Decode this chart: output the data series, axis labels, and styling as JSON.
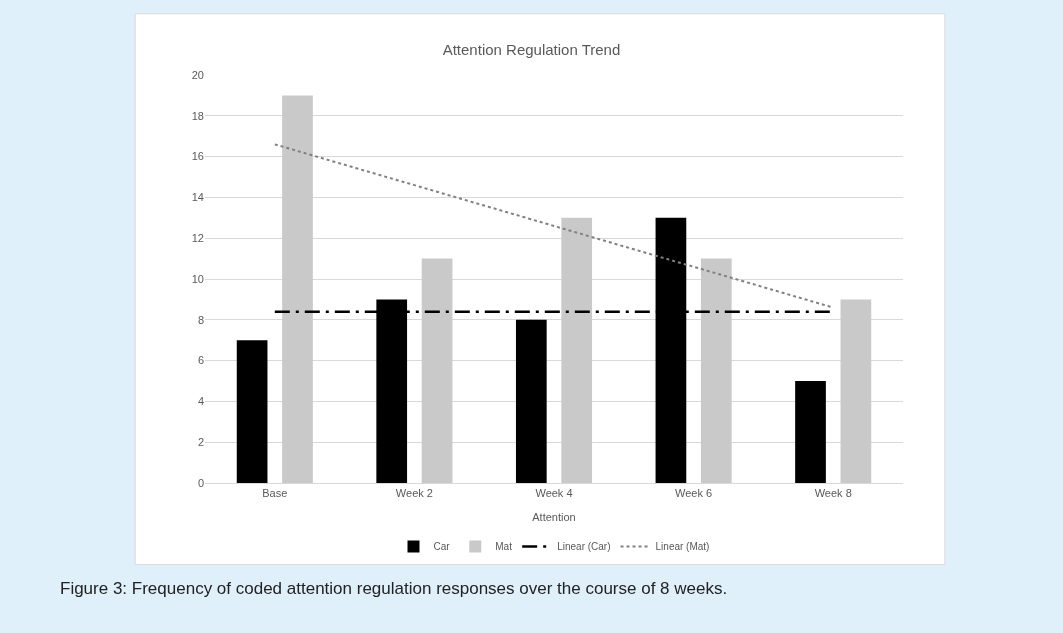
{
  "chart_data": {
    "type": "bar",
    "title": "Attention Regulation Trend",
    "xlabel": "Attention",
    "categories": [
      "Base",
      "Week 2",
      "Week 4",
      "Week 6",
      "Week 8"
    ],
    "series": [
      {
        "name": "Car",
        "color": "#000000",
        "values": [
          7,
          9,
          8,
          13,
          5
        ]
      },
      {
        "name": "Mat",
        "color": "#c9c9c9",
        "values": [
          19,
          11,
          13,
          11,
          9
        ]
      },
      {
        "name": "Linear (Car)",
        "type": "line",
        "color": "#000000",
        "line_style": "dashed",
        "values": [
          8.4,
          8.4,
          8.4,
          8.4,
          8.4
        ]
      },
      {
        "name": "Linear (Mat)",
        "type": "line",
        "color": "#808080",
        "line_style": "dotted",
        "values": [
          16.6,
          14.6,
          12.6,
          10.6,
          8.6
        ]
      }
    ],
    "ylim": [
      0,
      20
    ],
    "yticks": [
      0,
      2,
      4,
      6,
      8,
      10,
      12,
      14,
      16,
      18,
      20
    ],
    "grid": "y",
    "legend": "bottom",
    "annotations": [
      "Figure 3: Frequency of coded attention regulation responses over the course of 8 weeks."
    ]
  }
}
